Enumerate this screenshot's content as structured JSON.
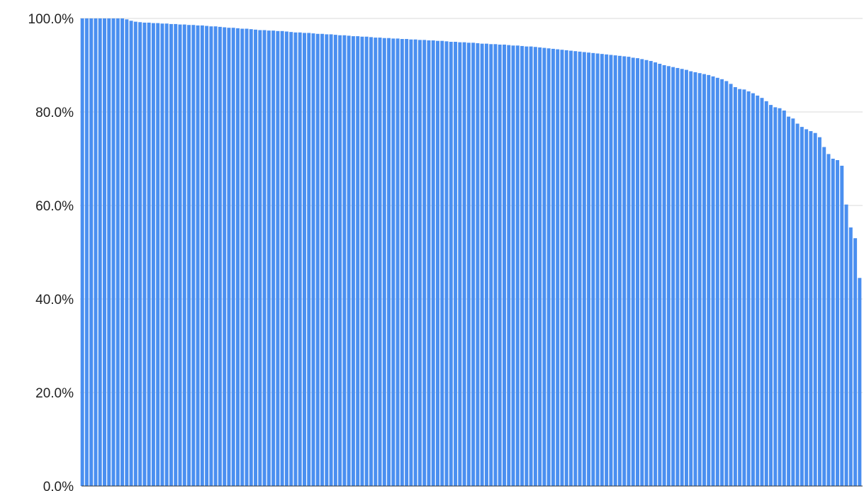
{
  "chart_data": {
    "type": "bar",
    "title": "",
    "xlabel": "",
    "ylabel": "",
    "ylim": [
      0,
      100
    ],
    "y_ticks": [
      {
        "value": 0,
        "label": "0.0%"
      },
      {
        "value": 20,
        "label": "20.0%"
      },
      {
        "value": 40,
        "label": "40.0%"
      },
      {
        "value": 60,
        "label": "60.0%"
      },
      {
        "value": 80,
        "label": "80.0%"
      },
      {
        "value": 100,
        "label": "100.0%"
      }
    ],
    "grid": true,
    "legend": "none",
    "bar_color": "#4a8ff0",
    "values": [
      100,
      100,
      100,
      100,
      100,
      100,
      100,
      100,
      100,
      100,
      99.8,
      99.5,
      99.3,
      99.2,
      99.1,
      99.1,
      99.0,
      99.0,
      98.9,
      98.9,
      98.8,
      98.8,
      98.7,
      98.7,
      98.6,
      98.6,
      98.5,
      98.5,
      98.4,
      98.3,
      98.3,
      98.2,
      98.1,
      98.0,
      98.0,
      97.9,
      97.8,
      97.8,
      97.7,
      97.6,
      97.5,
      97.5,
      97.4,
      97.4,
      97.3,
      97.3,
      97.2,
      97.1,
      97.0,
      97.0,
      96.9,
      96.9,
      96.8,
      96.7,
      96.7,
      96.6,
      96.6,
      96.5,
      96.4,
      96.4,
      96.3,
      96.2,
      96.2,
      96.1,
      96.1,
      96.0,
      95.9,
      95.9,
      95.8,
      95.8,
      95.7,
      95.7,
      95.6,
      95.6,
      95.5,
      95.5,
      95.4,
      95.4,
      95.3,
      95.3,
      95.2,
      95.2,
      95.1,
      95.0,
      95.0,
      94.9,
      94.9,
      94.8,
      94.8,
      94.7,
      94.6,
      94.6,
      94.5,
      94.5,
      94.4,
      94.4,
      94.3,
      94.2,
      94.2,
      94.1,
      94.0,
      94.0,
      93.9,
      93.8,
      93.7,
      93.6,
      93.5,
      93.4,
      93.3,
      93.2,
      93.1,
      93.0,
      92.9,
      92.8,
      92.7,
      92.6,
      92.5,
      92.4,
      92.3,
      92.2,
      92.1,
      92.0,
      91.9,
      91.8,
      91.6,
      91.5,
      91.3,
      91.1,
      90.9,
      90.6,
      90.3,
      90.0,
      89.8,
      89.6,
      89.4,
      89.2,
      89.0,
      88.7,
      88.5,
      88.3,
      88.1,
      87.9,
      87.6,
      87.3,
      87.0,
      86.6,
      86.0,
      85.3,
      84.9,
      84.8,
      84.4,
      84.0,
      83.5,
      83.0,
      82.3,
      81.5,
      81.0,
      80.8,
      80.3,
      79.0,
      78.6,
      77.5,
      76.8,
      76.3,
      75.9,
      75.5,
      74.6,
      72.5,
      71.0,
      70.0,
      69.7,
      68.5,
      60.2,
      55.3,
      53.0,
      44.5
    ]
  }
}
